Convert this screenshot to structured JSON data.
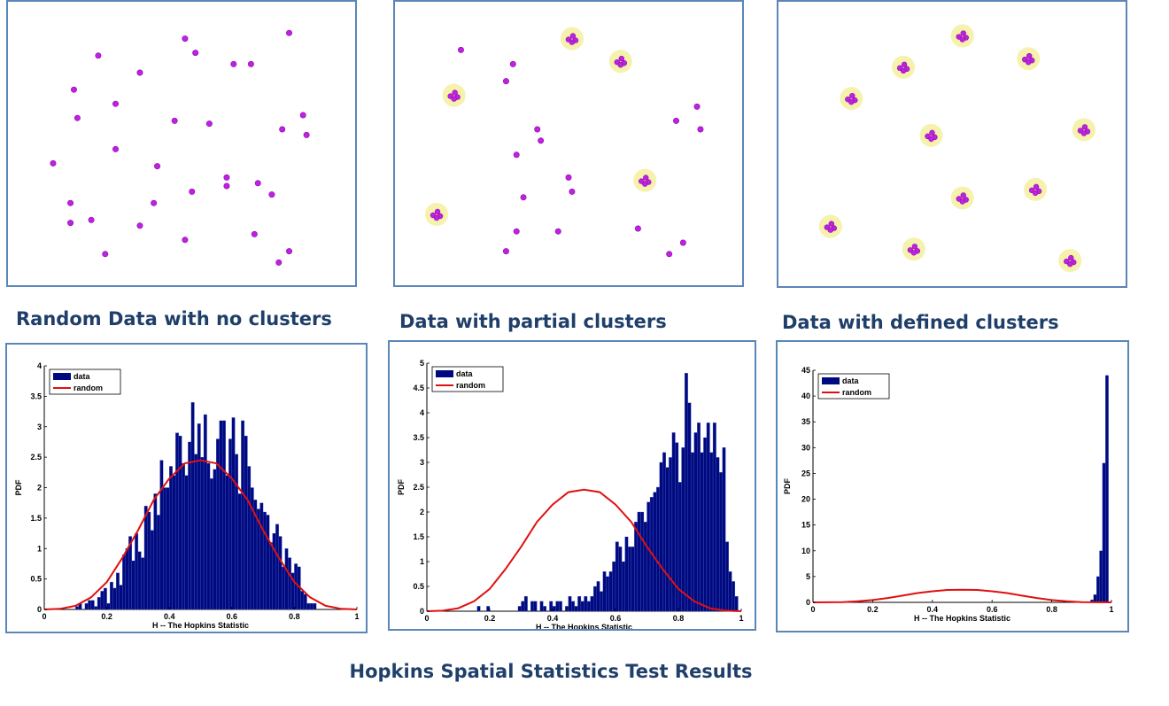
{
  "captions": {
    "random": "Random Data with no clusters",
    "partial": "Data with partial clusters",
    "defined": "Data with defined clusters"
  },
  "main_title": "Hopkins Spatial Statistics Test Results",
  "colors": {
    "point": "#c020e0",
    "halo": "#f5ef9e",
    "bar": "#000a80",
    "curve": "#e01010",
    "frame": "#5b86b8",
    "caption_text": "#1f3f6a"
  },
  "scatter_panels": [
    {
      "name": "random",
      "points": [
        [
          0.51,
          0.13
        ],
        [
          0.81,
          0.11
        ],
        [
          0.26,
          0.19
        ],
        [
          0.54,
          0.18
        ],
        [
          0.65,
          0.22
        ],
        [
          0.7,
          0.22
        ],
        [
          0.38,
          0.25
        ],
        [
          0.19,
          0.31
        ],
        [
          0.31,
          0.36
        ],
        [
          0.2,
          0.41
        ],
        [
          0.48,
          0.42
        ],
        [
          0.58,
          0.43
        ],
        [
          0.85,
          0.4
        ],
        [
          0.79,
          0.45
        ],
        [
          0.86,
          0.47
        ],
        [
          0.31,
          0.52
        ],
        [
          0.13,
          0.57
        ],
        [
          0.43,
          0.58
        ],
        [
          0.63,
          0.62
        ],
        [
          0.63,
          0.65
        ],
        [
          0.72,
          0.64
        ],
        [
          0.76,
          0.68
        ],
        [
          0.53,
          0.67
        ],
        [
          0.18,
          0.71
        ],
        [
          0.42,
          0.71
        ],
        [
          0.18,
          0.78
        ],
        [
          0.24,
          0.77
        ],
        [
          0.38,
          0.79
        ],
        [
          0.71,
          0.82
        ],
        [
          0.51,
          0.84
        ],
        [
          0.81,
          0.88
        ],
        [
          0.28,
          0.89
        ],
        [
          0.78,
          0.92
        ]
      ]
    },
    {
      "name": "partial",
      "points": [
        [
          0.19,
          0.17
        ],
        [
          0.34,
          0.22
        ],
        [
          0.32,
          0.28
        ],
        [
          0.81,
          0.42
        ],
        [
          0.87,
          0.37
        ],
        [
          0.88,
          0.45
        ],
        [
          0.41,
          0.45
        ],
        [
          0.42,
          0.49
        ],
        [
          0.35,
          0.54
        ],
        [
          0.5,
          0.62
        ],
        [
          0.51,
          0.67
        ],
        [
          0.37,
          0.69
        ],
        [
          0.47,
          0.81
        ],
        [
          0.35,
          0.81
        ],
        [
          0.7,
          0.8
        ],
        [
          0.83,
          0.85
        ],
        [
          0.79,
          0.89
        ],
        [
          0.32,
          0.88
        ]
      ],
      "clusters": [
        [
          0.51,
          0.13
        ],
        [
          0.65,
          0.21
        ],
        [
          0.17,
          0.33
        ],
        [
          0.72,
          0.63
        ],
        [
          0.12,
          0.75
        ]
      ]
    },
    {
      "name": "defined",
      "points": [],
      "clusters": [
        [
          0.53,
          0.12
        ],
        [
          0.72,
          0.2
        ],
        [
          0.36,
          0.23
        ],
        [
          0.21,
          0.34
        ],
        [
          0.44,
          0.47
        ],
        [
          0.88,
          0.45
        ],
        [
          0.53,
          0.69
        ],
        [
          0.74,
          0.66
        ],
        [
          0.15,
          0.79
        ],
        [
          0.39,
          0.87
        ],
        [
          0.84,
          0.91
        ]
      ]
    }
  ],
  "chart_data": [
    {
      "type": "bar",
      "xlabel": "H -- The Hopkins Statistic",
      "ylabel": "PDF",
      "xlim": [
        0,
        1
      ],
      "ylim": [
        0,
        4
      ],
      "xticks": [
        0,
        0.2,
        0.4,
        0.6,
        0.8,
        1
      ],
      "xtick_labels": [
        "0",
        "0.2",
        "0.4",
        "0.6",
        "0.8",
        "1"
      ],
      "yticks": [
        0,
        0.5,
        1,
        1.5,
        2,
        2.5,
        3,
        3.5,
        4
      ],
      "ytick_labels": [
        "0",
        "0.5",
        "1",
        "1.5",
        "2",
        "2.5",
        "3",
        "3.5",
        "4"
      ],
      "legend": {
        "position": "top-left",
        "entries": [
          "data",
          "random"
        ]
      },
      "series": [
        {
          "name": "data",
          "type": "bar",
          "x": [
            0.105,
            0.115,
            0.125,
            0.135,
            0.145,
            0.155,
            0.165,
            0.175,
            0.185,
            0.195,
            0.205,
            0.215,
            0.225,
            0.235,
            0.245,
            0.255,
            0.265,
            0.275,
            0.285,
            0.295,
            0.305,
            0.315,
            0.325,
            0.335,
            0.345,
            0.355,
            0.365,
            0.375,
            0.385,
            0.395,
            0.405,
            0.415,
            0.425,
            0.435,
            0.445,
            0.455,
            0.465,
            0.475,
            0.485,
            0.495,
            0.505,
            0.515,
            0.525,
            0.535,
            0.545,
            0.555,
            0.565,
            0.575,
            0.585,
            0.595,
            0.605,
            0.615,
            0.625,
            0.635,
            0.645,
            0.655,
            0.665,
            0.675,
            0.685,
            0.695,
            0.705,
            0.715,
            0.725,
            0.735,
            0.745,
            0.755,
            0.765,
            0.775,
            0.785,
            0.795,
            0.805,
            0.815,
            0.825,
            0.835,
            0.845,
            0.855,
            0.865
          ],
          "values": [
            0.05,
            0.1,
            0,
            0.1,
            0.15,
            0.15,
            0.05,
            0.2,
            0.3,
            0.35,
            0.1,
            0.45,
            0.35,
            0.6,
            0.4,
            0.9,
            1.0,
            1.2,
            0.8,
            1.25,
            0.95,
            0.85,
            1.7,
            1.6,
            1.3,
            1.9,
            1.55,
            2.45,
            2.0,
            2.0,
            2.35,
            2.2,
            2.9,
            2.85,
            2.4,
            2.2,
            2.75,
            3.4,
            2.55,
            3.05,
            2.5,
            3.2,
            2.4,
            2.15,
            2.3,
            2.8,
            3.1,
            3.1,
            2.2,
            2.8,
            3.15,
            2.55,
            1.9,
            3.1,
            2.85,
            2.35,
            2.0,
            1.8,
            1.65,
            1.75,
            1.6,
            1.55,
            1.1,
            1.25,
            1.4,
            1.2,
            0.7,
            1.0,
            0.85,
            0.6,
            0.75,
            0.7,
            0.3,
            0.25,
            0.1,
            0.1,
            0.1
          ]
        },
        {
          "name": "random",
          "type": "line",
          "x": [
            0,
            0.05,
            0.1,
            0.15,
            0.2,
            0.25,
            0.3,
            0.35,
            0.4,
            0.45,
            0.5,
            0.55,
            0.6,
            0.65,
            0.7,
            0.75,
            0.8,
            0.85,
            0.9,
            0.95,
            1
          ],
          "values": [
            0,
            0.01,
            0.06,
            0.2,
            0.45,
            0.85,
            1.3,
            1.8,
            2.15,
            2.4,
            2.45,
            2.4,
            2.15,
            1.8,
            1.3,
            0.85,
            0.45,
            0.2,
            0.06,
            0.01,
            0
          ]
        }
      ]
    },
    {
      "type": "bar",
      "xlabel": "H -- The Hopkins Statistic",
      "ylabel": "PDF",
      "xlim": [
        0,
        1
      ],
      "ylim": [
        0,
        5
      ],
      "xticks": [
        0,
        0.2,
        0.4,
        0.6,
        0.8,
        1
      ],
      "xtick_labels": [
        "0",
        "0.2",
        "0.4",
        "0.6",
        "0.8",
        "1"
      ],
      "yticks": [
        0,
        0.5,
        1,
        1.5,
        2,
        2.5,
        3,
        3.5,
        4,
        4.5,
        5
      ],
      "ytick_labels": [
        "0",
        "0.5",
        "1",
        "1.5",
        "2",
        "2.5",
        "3",
        "3.5",
        "4",
        "4.5",
        "5"
      ],
      "legend": {
        "position": "top-left",
        "entries": [
          "data",
          "random"
        ]
      },
      "series": [
        {
          "name": "data",
          "type": "bar",
          "x": [
            0.165,
            0.195,
            0.295,
            0.305,
            0.315,
            0.335,
            0.345,
            0.365,
            0.375,
            0.395,
            0.405,
            0.415,
            0.425,
            0.445,
            0.455,
            0.465,
            0.475,
            0.485,
            0.495,
            0.505,
            0.515,
            0.525,
            0.535,
            0.545,
            0.555,
            0.565,
            0.575,
            0.585,
            0.595,
            0.605,
            0.615,
            0.625,
            0.635,
            0.645,
            0.655,
            0.665,
            0.675,
            0.685,
            0.695,
            0.705,
            0.715,
            0.725,
            0.735,
            0.745,
            0.755,
            0.765,
            0.775,
            0.785,
            0.795,
            0.805,
            0.815,
            0.825,
            0.835,
            0.845,
            0.855,
            0.865,
            0.875,
            0.885,
            0.895,
            0.905,
            0.915,
            0.925,
            0.935,
            0.945,
            0.955,
            0.965,
            0.975,
            0.985
          ],
          "values": [
            0.1,
            0.1,
            0.1,
            0.2,
            0.3,
            0.2,
            0.2,
            0.2,
            0.1,
            0.2,
            0.1,
            0.2,
            0.2,
            0.1,
            0.3,
            0.2,
            0.1,
            0.3,
            0.2,
            0.3,
            0.2,
            0.3,
            0.5,
            0.6,
            0.4,
            0.8,
            0.7,
            0.8,
            1.0,
            1.4,
            1.3,
            1.0,
            1.5,
            1.3,
            1.3,
            1.8,
            2.0,
            2.0,
            1.8,
            2.2,
            2.3,
            2.4,
            2.5,
            3.0,
            3.2,
            2.9,
            3.1,
            3.6,
            3.4,
            2.6,
            3.3,
            4.8,
            4.2,
            3.2,
            3.6,
            3.8,
            3.2,
            3.5,
            3.8,
            3.2,
            3.8,
            3.1,
            2.8,
            3.3,
            1.4,
            0.8,
            0.6,
            0.3
          ]
        },
        {
          "name": "random",
          "type": "line",
          "x": [
            0,
            0.05,
            0.1,
            0.15,
            0.2,
            0.25,
            0.3,
            0.35,
            0.4,
            0.45,
            0.5,
            0.55,
            0.6,
            0.65,
            0.7,
            0.75,
            0.8,
            0.85,
            0.9,
            0.95,
            1
          ],
          "values": [
            0,
            0.01,
            0.06,
            0.2,
            0.45,
            0.85,
            1.3,
            1.8,
            2.15,
            2.4,
            2.45,
            2.4,
            2.15,
            1.8,
            1.3,
            0.85,
            0.45,
            0.2,
            0.06,
            0.01,
            0
          ]
        }
      ]
    },
    {
      "type": "bar",
      "xlabel": "H -- The Hopkins Statistic",
      "ylabel": "PDF",
      "xlim": [
        0,
        1
      ],
      "ylim": [
        0,
        45
      ],
      "xticks": [
        0,
        0.2,
        0.4,
        0.6,
        0.8,
        1
      ],
      "xtick_labels": [
        "0",
        "0.2",
        "0.4",
        "0.6",
        "0.8",
        "1"
      ],
      "yticks": [
        0,
        5,
        10,
        15,
        20,
        25,
        30,
        35,
        40,
        45
      ],
      "ytick_labels": [
        "0",
        "5",
        "10",
        "15",
        "20",
        "25",
        "30",
        "35",
        "40",
        "45"
      ],
      "legend": {
        "position": "top-left",
        "entries": [
          "data",
          "random"
        ]
      },
      "series": [
        {
          "name": "data",
          "type": "bar",
          "x": [
            0.935,
            0.945,
            0.955,
            0.965,
            0.975,
            0.985
          ],
          "values": [
            0.5,
            1.5,
            5,
            10,
            27,
            44
          ]
        },
        {
          "name": "random",
          "type": "line",
          "x": [
            0,
            0.05,
            0.1,
            0.15,
            0.2,
            0.25,
            0.3,
            0.35,
            0.4,
            0.45,
            0.5,
            0.55,
            0.6,
            0.65,
            0.7,
            0.75,
            0.8,
            0.85,
            0.9,
            0.95,
            1
          ],
          "values": [
            0,
            0.01,
            0.06,
            0.2,
            0.45,
            0.85,
            1.3,
            1.8,
            2.15,
            2.4,
            2.45,
            2.4,
            2.15,
            1.8,
            1.3,
            0.85,
            0.45,
            0.2,
            0.06,
            0.01,
            0
          ]
        }
      ]
    }
  ]
}
